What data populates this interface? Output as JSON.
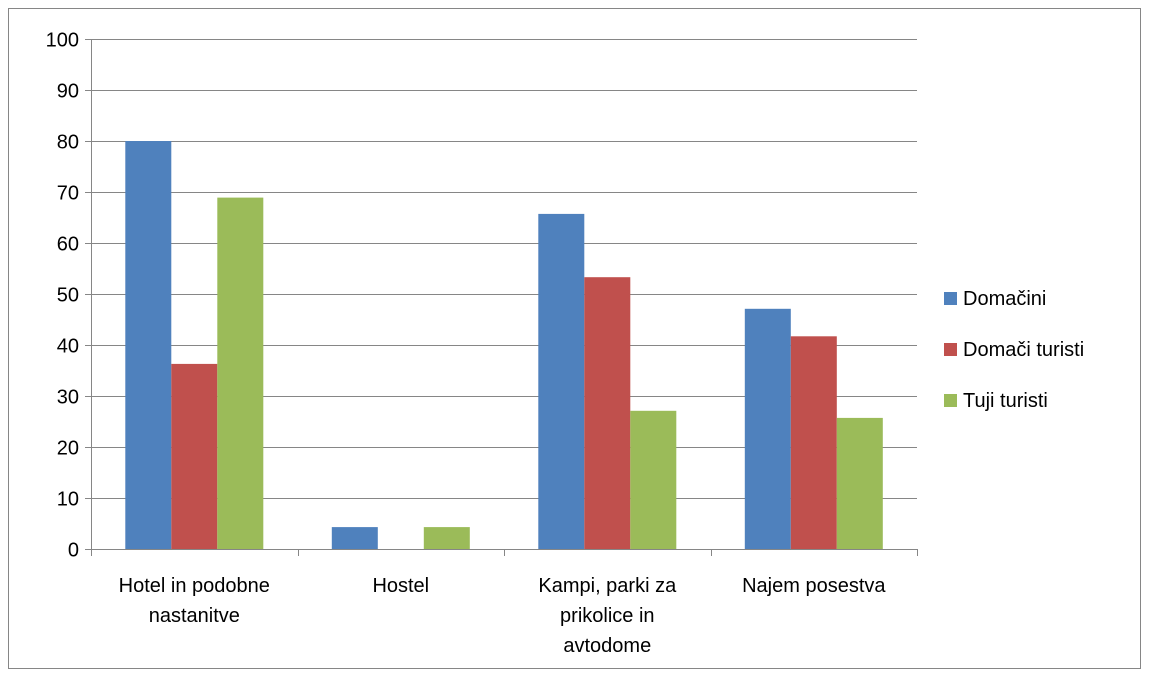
{
  "chart_data": {
    "type": "bar",
    "categories": [
      "Hotel in podobne nastanitve",
      "Hostel",
      "Kampi, parki za prikolice in avtodome",
      "Najem posestva"
    ],
    "category_lines": [
      [
        "Hotel in podobne",
        "nastanitve"
      ],
      [
        "Hostel"
      ],
      [
        "Kampi, parki za",
        "prikolice in",
        "avtodome"
      ],
      [
        "Najem posestva"
      ]
    ],
    "series": [
      {
        "name": "Domačini",
        "color": "#4F81BD",
        "values": [
          80,
          4.3,
          65.7,
          47.1
        ]
      },
      {
        "name": "Domači turisti",
        "color": "#C0504D",
        "values": [
          36.3,
          0,
          53.3,
          41.7
        ]
      },
      {
        "name": "Tuji turisti",
        "color": "#9BBB59",
        "values": [
          68.9,
          4.3,
          27.1,
          25.7
        ]
      }
    ],
    "ylim": [
      0,
      100
    ],
    "ytick_step": 10,
    "yticks": [
      "0",
      "10",
      "20",
      "30",
      "40",
      "50",
      "60",
      "70",
      "80",
      "90",
      "100"
    ],
    "grid": true,
    "legend_position": "right",
    "title": "",
    "xlabel": "",
    "ylabel": ""
  }
}
